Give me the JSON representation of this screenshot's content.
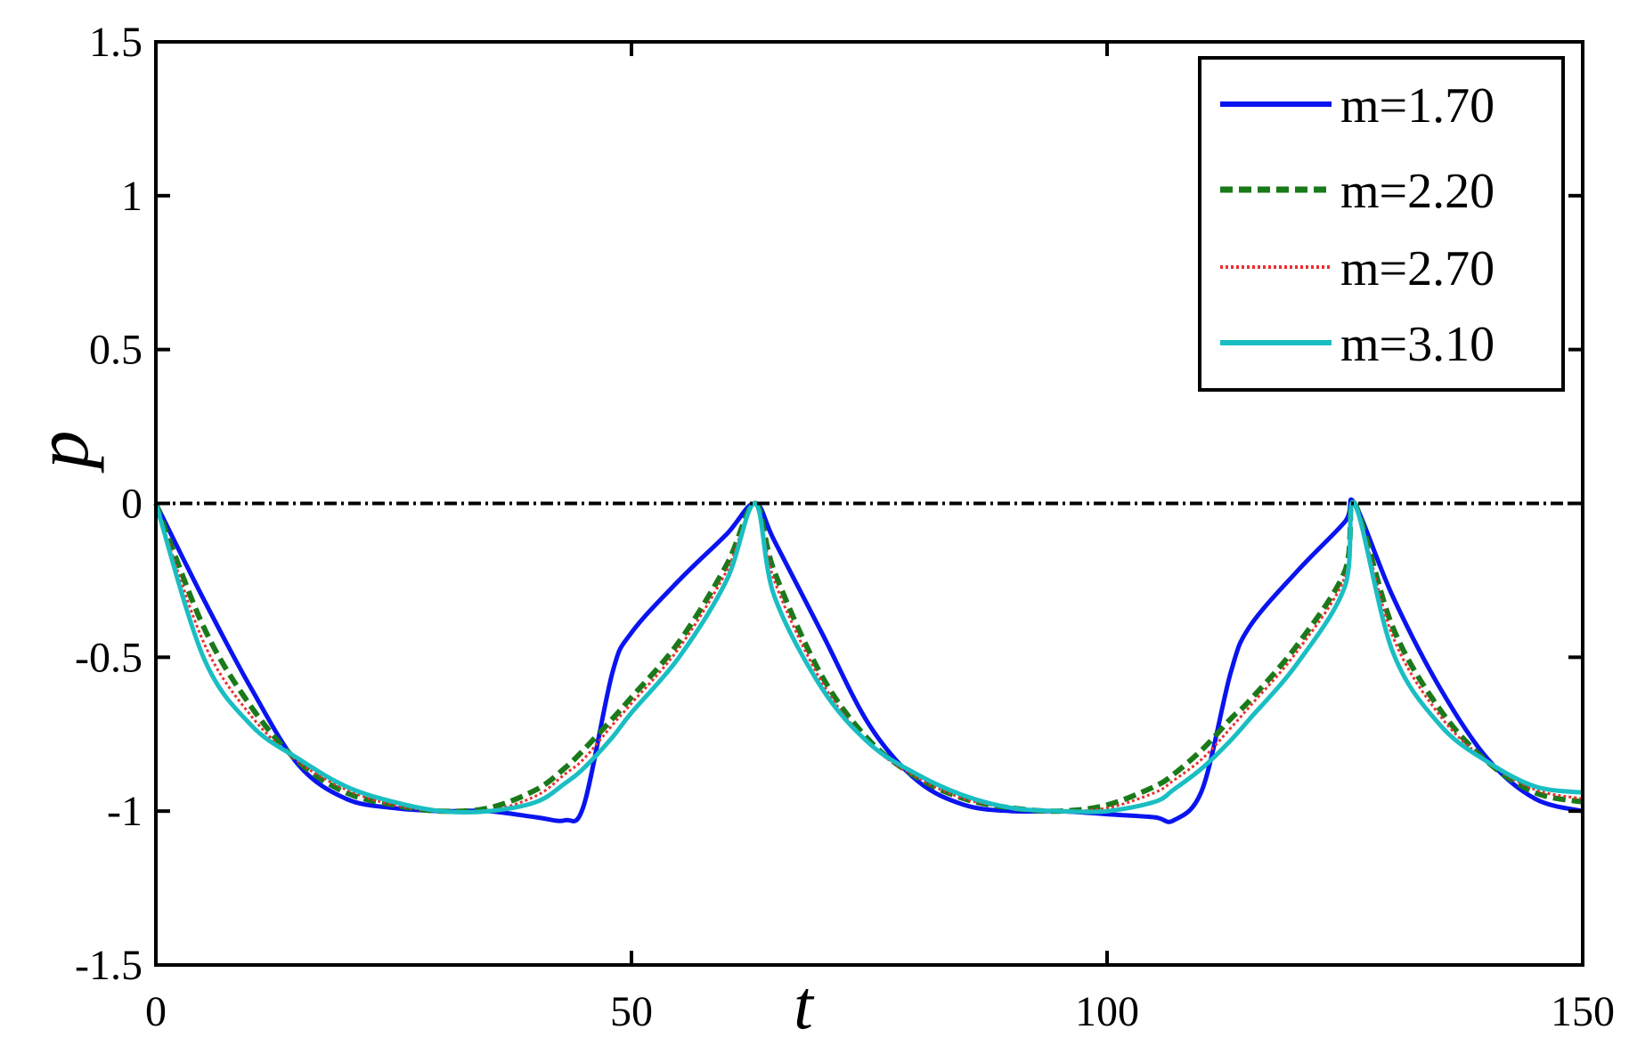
{
  "chart_data": {
    "type": "line",
    "title": "",
    "xlabel": "t",
    "ylabel": "p",
    "xlim": [
      0,
      150
    ],
    "ylim": [
      -1.5,
      1.5
    ],
    "xticks": [
      0,
      50,
      100,
      150
    ],
    "xtick_labels": [
      "0",
      "50",
      "100",
      "150"
    ],
    "yticks": [
      1.5,
      1,
      0.5,
      0,
      -0.5,
      -1,
      -1.5
    ],
    "ytick_labels": [
      "1.5",
      "1",
      "0.5",
      "0",
      "-0.5",
      "-1",
      "-1.5"
    ],
    "grid": false,
    "legend_position": "top-right",
    "reference_line": {
      "y": 0,
      "style": "dash-dot",
      "color": "#000000"
    },
    "x": [
      0,
      5,
      10,
      15,
      20,
      25,
      30,
      35,
      40,
      43,
      45,
      48,
      50,
      55,
      60,
      63,
      65,
      70,
      75,
      80,
      85,
      90,
      95,
      100,
      105,
      107,
      110,
      113,
      115,
      120,
      125,
      126,
      130,
      135,
      140,
      145,
      150
    ],
    "series": [
      {
        "name": "m=1.70",
        "color": "#0a14f0",
        "style": "solid",
        "values": [
          0,
          -0.31,
          -0.6,
          -0.85,
          -0.96,
          -0.99,
          -1,
          -1,
          -1.02,
          -1.03,
          -0.98,
          -0.55,
          -0.42,
          -0.25,
          -0.1,
          0,
          -0.12,
          -0.42,
          -0.72,
          -0.9,
          -0.98,
          -1,
          -1,
          -1.01,
          -1.02,
          -1.03,
          -0.93,
          -0.55,
          -0.4,
          -0.22,
          -0.06,
          0,
          -0.3,
          -0.6,
          -0.83,
          -0.96,
          -1
        ]
      },
      {
        "name": "m=2.20",
        "color": "#1a7a1a",
        "style": "dashed",
        "values": [
          0,
          -0.4,
          -0.66,
          -0.84,
          -0.94,
          -0.98,
          -1,
          -0.99,
          -0.93,
          -0.86,
          -0.8,
          -0.7,
          -0.63,
          -0.45,
          -0.2,
          0,
          -0.22,
          -0.56,
          -0.77,
          -0.89,
          -0.96,
          -0.99,
          -1,
          -0.98,
          -0.92,
          -0.88,
          -0.8,
          -0.7,
          -0.64,
          -0.46,
          -0.22,
          0,
          -0.4,
          -0.67,
          -0.84,
          -0.94,
          -0.97
        ]
      },
      {
        "name": "m=2.70",
        "color": "#e83030",
        "style": "dotted",
        "values": [
          0,
          -0.45,
          -0.69,
          -0.84,
          -0.93,
          -0.98,
          -1,
          -1,
          -0.95,
          -0.88,
          -0.83,
          -0.72,
          -0.65,
          -0.47,
          -0.22,
          0,
          -0.25,
          -0.58,
          -0.78,
          -0.89,
          -0.96,
          -0.99,
          -1,
          -0.99,
          -0.94,
          -0.9,
          -0.83,
          -0.73,
          -0.66,
          -0.48,
          -0.24,
          0,
          -0.43,
          -0.69,
          -0.84,
          -0.93,
          -0.96
        ]
      },
      {
        "name": "m=3.10",
        "color": "#1abec2",
        "style": "solid",
        "values": [
          0,
          -0.5,
          -0.72,
          -0.83,
          -0.92,
          -0.97,
          -1,
          -1,
          -0.97,
          -0.91,
          -0.86,
          -0.76,
          -0.68,
          -0.5,
          -0.25,
          0,
          -0.3,
          -0.6,
          -0.78,
          -0.88,
          -0.95,
          -0.99,
          -1,
          -1,
          -0.97,
          -0.93,
          -0.86,
          -0.77,
          -0.7,
          -0.52,
          -0.27,
          0,
          -0.48,
          -0.72,
          -0.84,
          -0.92,
          -0.94
        ]
      }
    ]
  }
}
